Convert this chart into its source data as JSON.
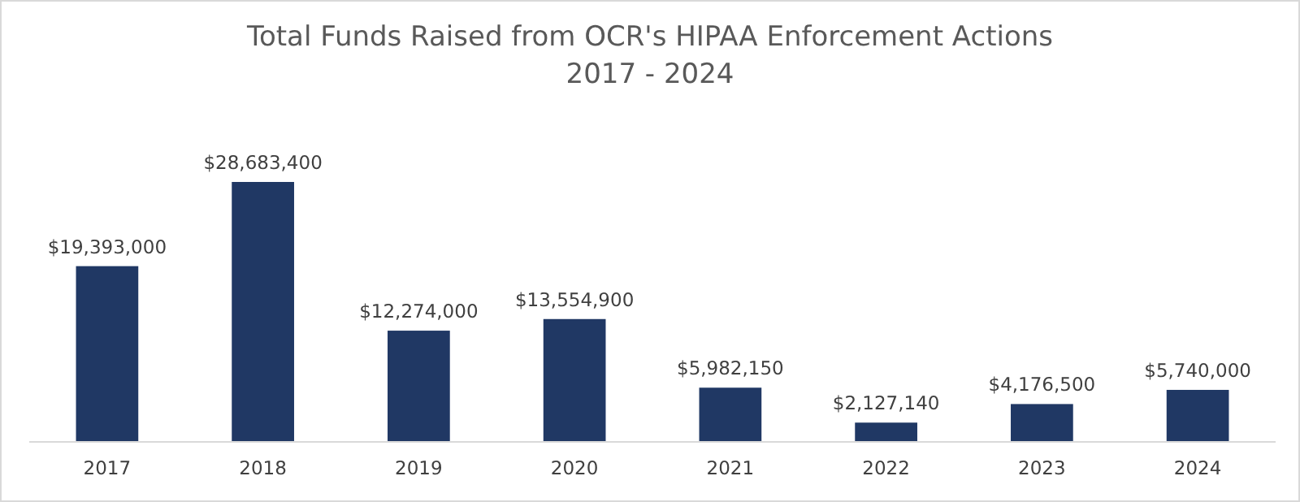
{
  "chart_data": {
    "type": "bar",
    "title": "Total Funds Raised from OCR's HIPAA Enforcement Actions",
    "subtitle": "2017 - 2024",
    "categories": [
      "2017",
      "2018",
      "2019",
      "2020",
      "2021",
      "2022",
      "2023",
      "2024"
    ],
    "values": [
      19393000,
      28683400,
      12274000,
      13554900,
      5982150,
      2127140,
      4176500,
      5740000
    ],
    "value_labels": [
      "$19,393,000",
      "$28,683,400",
      "$12,274,000",
      "$13,554,900",
      "$5,982,150",
      "$2,127,140",
      "$4,176,500",
      "$5,740,000"
    ],
    "color": "#203864"
  }
}
